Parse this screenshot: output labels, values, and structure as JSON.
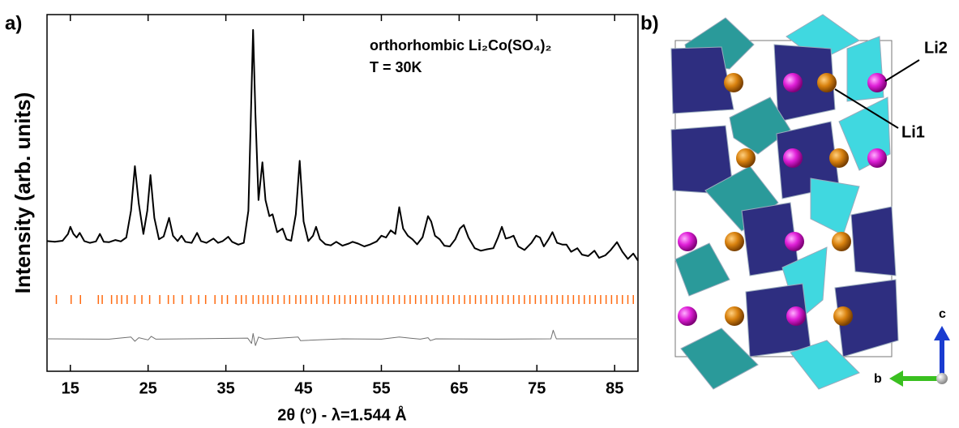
{
  "panels": {
    "a_label": "a)",
    "b_label": "b)"
  },
  "chart_data": {
    "type": "line",
    "annotation": [
      "orthorhombic Li₂Co(SO₄)₂",
      "T = 30K"
    ],
    "xlabel": "2θ (°) - λ=1.544 Å",
    "ylabel": "Intensity (arb. units)",
    "xlim": [
      12,
      88
    ],
    "ylim": [
      0,
      100
    ],
    "xticks": [
      15,
      25,
      35,
      45,
      55,
      65,
      75,
      85
    ],
    "x": [
      12,
      13,
      14,
      14.7,
      15,
      15.4,
      15.8,
      16.2,
      16.8,
      17.5,
      18.3,
      18.8,
      19.3,
      20,
      20.8,
      21.5,
      22.2,
      22.8,
      23.3,
      23.8,
      24.4,
      24.9,
      25.3,
      25.8,
      26.4,
      27,
      27.7,
      28.2,
      28.8,
      29.3,
      29.8,
      30.6,
      31.3,
      31.8,
      32.5,
      33.4,
      34,
      34.6,
      35.3,
      35.8,
      36.6,
      37.3,
      37.9,
      38.2,
      38.5,
      38.8,
      39.2,
      39.7,
      40.1,
      40.6,
      41,
      41.6,
      42.3,
      42.8,
      43.4,
      44,
      44.5,
      45,
      45.6,
      46.2,
      46.6,
      47.1,
      47.8,
      48.5,
      49.2,
      50,
      50.8,
      51.3,
      52,
      52.8,
      53.6,
      54.4,
      55,
      55.6,
      56.2,
      56.8,
      57.3,
      57.8,
      58.4,
      59,
      59.6,
      60.3,
      61,
      61.4,
      61.9,
      62.5,
      63.1,
      63.8,
      64.5,
      65.1,
      65.6,
      66.2,
      67,
      67.8,
      68.6,
      69.4,
      70,
      70.5,
      71,
      71.5,
      72,
      72.6,
      73.4,
      74.3,
      74.9,
      75.4,
      75.9,
      76.5,
      77,
      77.6,
      78.3,
      78.8,
      79.4,
      80.2,
      80.8,
      81.6,
      82.4,
      83,
      83.8,
      84.5,
      85.3,
      86,
      86.7,
      87.4,
      88
    ],
    "series": [
      {
        "color": "#000000",
        "values": [
          36.5,
          36.3,
          36.6,
          38.5,
          40.5,
          38.5,
          37.5,
          38.8,
          36.5,
          36,
          36.4,
          38.5,
          36.3,
          36.2,
          36.8,
          36.4,
          37.5,
          45,
          57.5,
          47,
          38.5,
          45,
          55,
          43,
          37,
          37.8,
          43,
          38,
          36.5,
          38,
          36.3,
          36,
          38.8,
          36.5,
          36,
          37.2,
          36,
          36.5,
          37.7,
          36.3,
          35.5,
          36,
          45,
          70,
          95.7,
          72,
          48,
          58.6,
          48,
          43.5,
          44,
          39,
          40,
          37,
          36.6,
          44,
          59,
          42,
          36.5,
          38,
          40.5,
          37,
          35.6,
          35.3,
          36.3,
          35.2,
          35.8,
          36.3,
          35.8,
          35,
          35.6,
          36.4,
          38,
          37.5,
          39.5,
          38.5,
          46,
          40,
          38,
          37,
          35.6,
          37.6,
          43.5,
          42,
          38,
          37,
          35.2,
          35,
          37,
          40,
          41,
          37.5,
          34.5,
          33.8,
          34.2,
          34.5,
          37.5,
          40.5,
          37.2,
          37.5,
          38,
          35,
          34,
          36,
          38,
          37.5,
          35,
          37,
          39,
          36,
          35.5,
          35.5,
          33.5,
          34.5,
          32.7,
          32.3,
          33.8,
          31.8,
          32.5,
          34,
          36.2,
          33.5,
          31.5,
          33,
          31
        ]
      }
    ],
    "reflections": {
      "color": "#ff6a10",
      "x": [
        13.2,
        15.1,
        16.3,
        18.6,
        19.1,
        20.3,
        21.0,
        21.6,
        22.3,
        23.3,
        24.2,
        25.2,
        26.5,
        27.6,
        28.3,
        29.4,
        30.5,
        31.5,
        32.4,
        33.6,
        34.5,
        35.2,
        36.3,
        37.0,
        37.6,
        38.5,
        39.2,
        39.8,
        40.4,
        41.0,
        41.7,
        42.5,
        43.2,
        44.0,
        44.6,
        45.3,
        46.0,
        46.7,
        47.5,
        48.2,
        49.0,
        49.6,
        50.3,
        51.0,
        51.7,
        52.4,
        53.1,
        53.8,
        54.5,
        55.2,
        55.9,
        56.6,
        57.3,
        58.0,
        58.7,
        59.4,
        60.1,
        60.8,
        61.5,
        62.2,
        62.9,
        63.6,
        64.3,
        65.0,
        65.7,
        66.4,
        67.1,
        67.8,
        68.5,
        69.2,
        69.9,
        70.6,
        71.3,
        72.0,
        72.7,
        73.4,
        74.1,
        74.8,
        75.5,
        76.2,
        76.9,
        77.6,
        78.3,
        79.0,
        79.7,
        80.4,
        81.1,
        81.8,
        82.5,
        83.2,
        83.9,
        84.6,
        85.3,
        86.0,
        86.7,
        87.4
      ]
    },
    "difference": {
      "color": "#707070",
      "x": [
        12,
        20,
        22.8,
        23.3,
        23.8,
        25,
        25.4,
        26,
        30,
        37.8,
        38.3,
        38.5,
        38.8,
        39.2,
        40,
        44.3,
        44.6,
        50,
        55,
        57.3,
        60,
        61,
        61.3,
        62,
        70,
        76.8,
        77.1,
        77.5,
        88
      ],
      "values": [
        9.1,
        9.0,
        9.6,
        8.4,
        9.4,
        8.8,
        9.8,
        9.0,
        9.1,
        9.3,
        7.8,
        10.6,
        7.2,
        9.6,
        9.0,
        9.6,
        8.6,
        9.1,
        9.0,
        9.6,
        9.0,
        9.4,
        8.6,
        9.1,
        9.0,
        9.1,
        11.5,
        9.1,
        9.1
      ]
    }
  },
  "structure": {
    "labels": {
      "li2": "Li2",
      "li1": "Li1",
      "c": "c",
      "b": "b"
    }
  }
}
